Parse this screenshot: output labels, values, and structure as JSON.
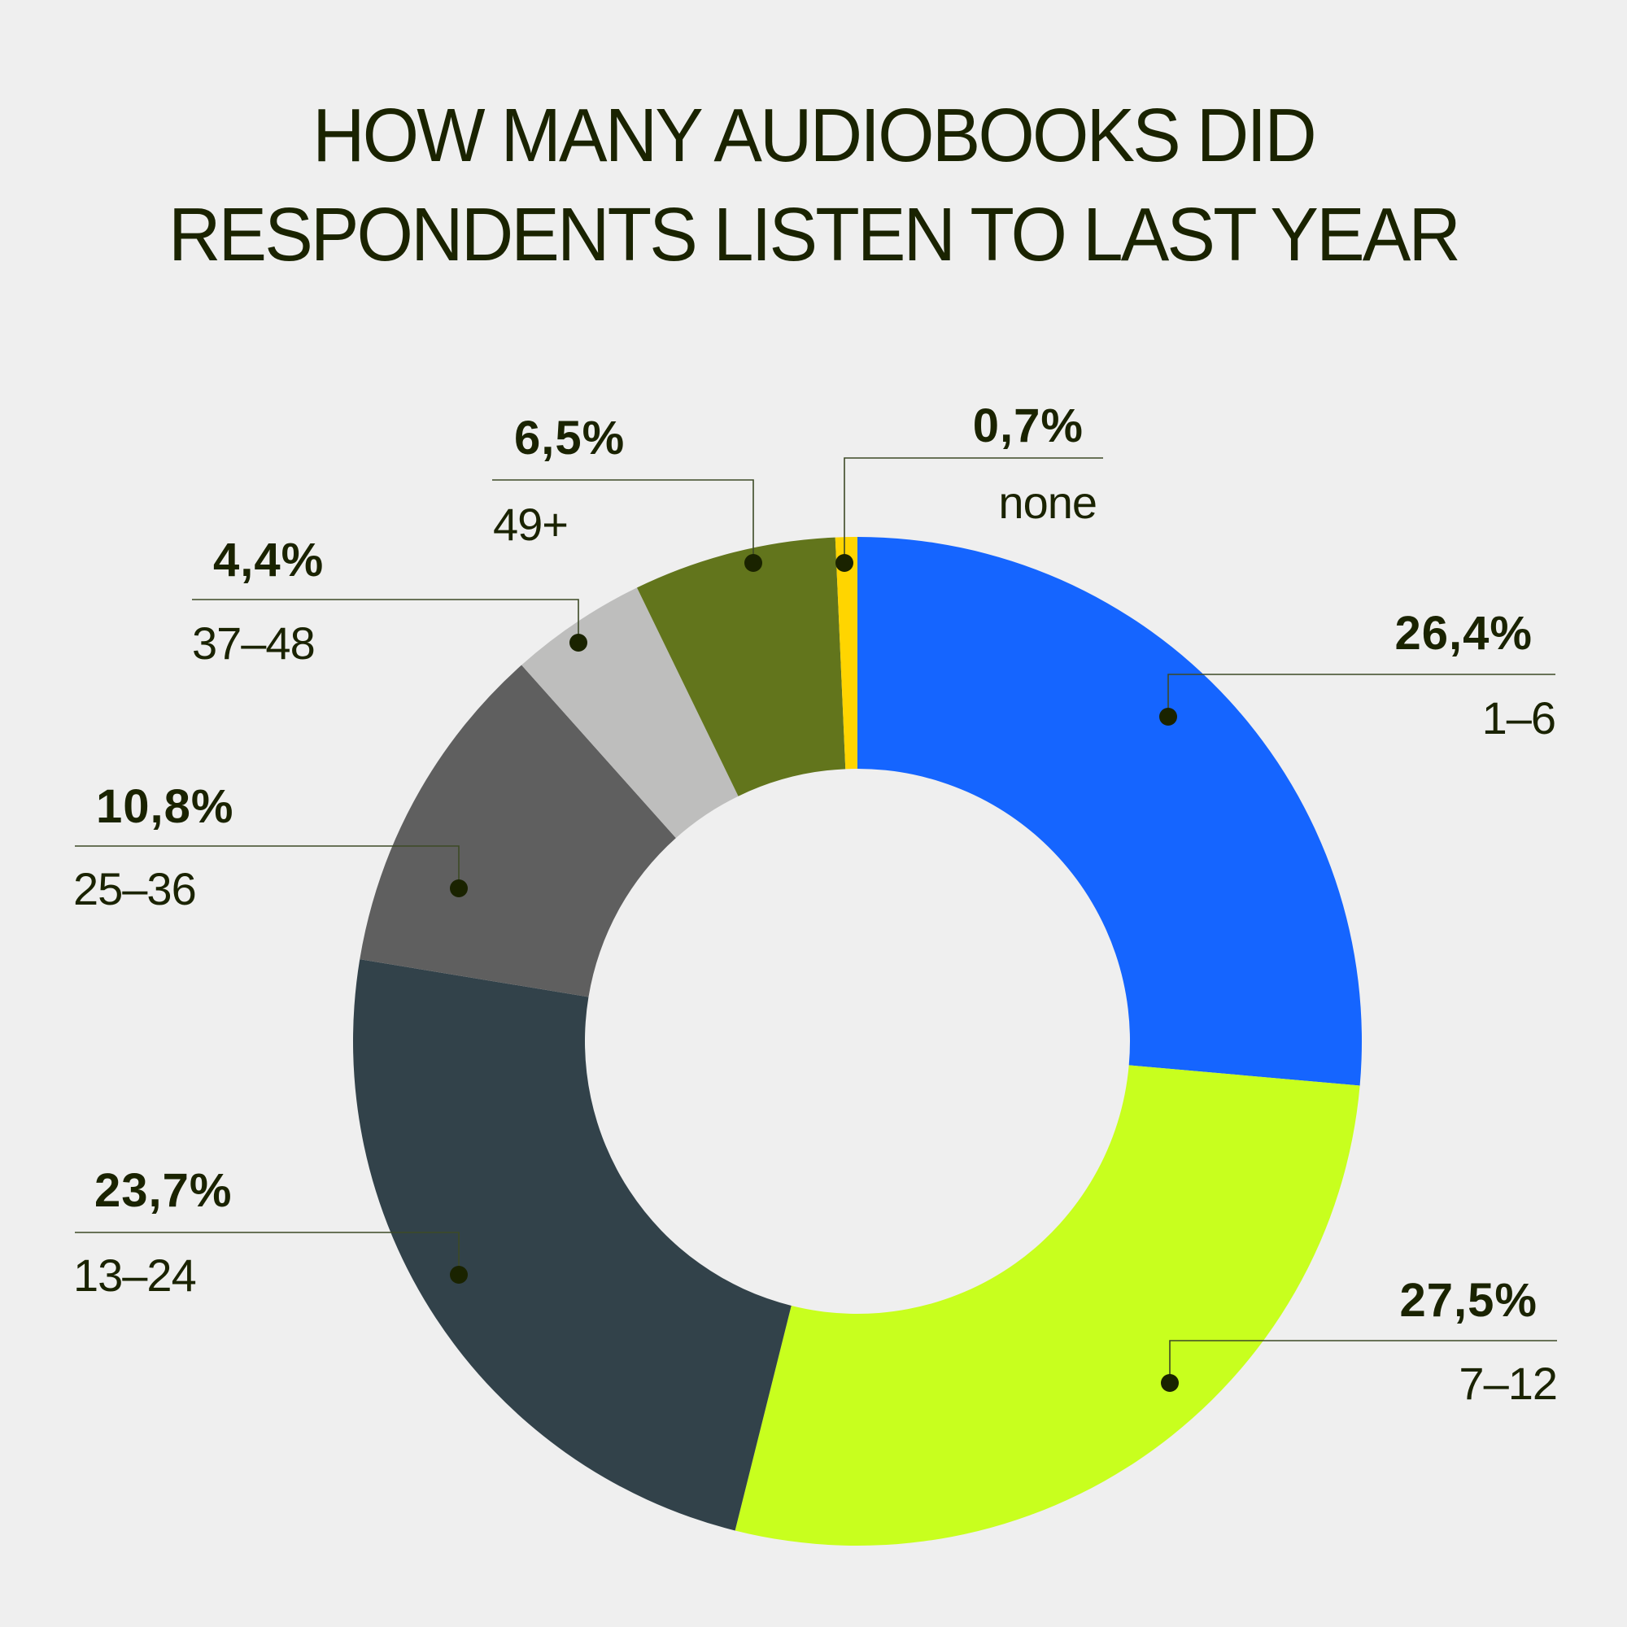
{
  "title": {
    "line1": "HOW MANY AUDIOBOOKS DID",
    "line2": "RESPONDENTS LISTEN TO LAST YEAR"
  },
  "labels": {
    "none": {
      "pct": "0,7%",
      "cat": "none"
    },
    "b49": {
      "pct": "6,5%",
      "cat": "49+"
    },
    "b37": {
      "pct": "4,4%",
      "cat": "37–48"
    },
    "b25": {
      "pct": "10,8%",
      "cat": "25–36"
    },
    "b13": {
      "pct": "23,7%",
      "cat": "13–24"
    },
    "b7": {
      "pct": "27,5%",
      "cat": "7–12"
    },
    "b1": {
      "pct": "26,4%",
      "cat": "1–6"
    }
  },
  "colors": {
    "background": "#efefef",
    "text": "#1a2300",
    "1-6": "#1565ff",
    "7-12": "#c8ff1e",
    "13-24": "#32424a",
    "25-36": "#5f5f5f",
    "37-48": "#bebebd",
    "49+": "#62751c",
    "none": "#ffd500"
  },
  "chart_data": {
    "type": "pie",
    "subtype": "donut",
    "title": "HOW MANY AUDIOBOOKS DID RESPONDENTS LISTEN TO LAST YEAR",
    "categories": [
      "1–6",
      "7–12",
      "13–24",
      "25–36",
      "37–48",
      "49+",
      "none"
    ],
    "values": [
      26.4,
      27.5,
      23.7,
      10.8,
      4.4,
      6.5,
      0.7
    ],
    "value_labels": [
      "26,4%",
      "27,5%",
      "23,7%",
      "10,8%",
      "4,4%",
      "6,5%",
      "0,7%"
    ],
    "unit": "%",
    "colors": [
      "#1565ff",
      "#c8ff1e",
      "#32424a",
      "#5f5f5f",
      "#bebebd",
      "#62751c",
      "#ffd500"
    ],
    "start_angle": "12 o'clock",
    "direction": "clockwise",
    "legend": "none (callout labels)",
    "grid": false
  }
}
